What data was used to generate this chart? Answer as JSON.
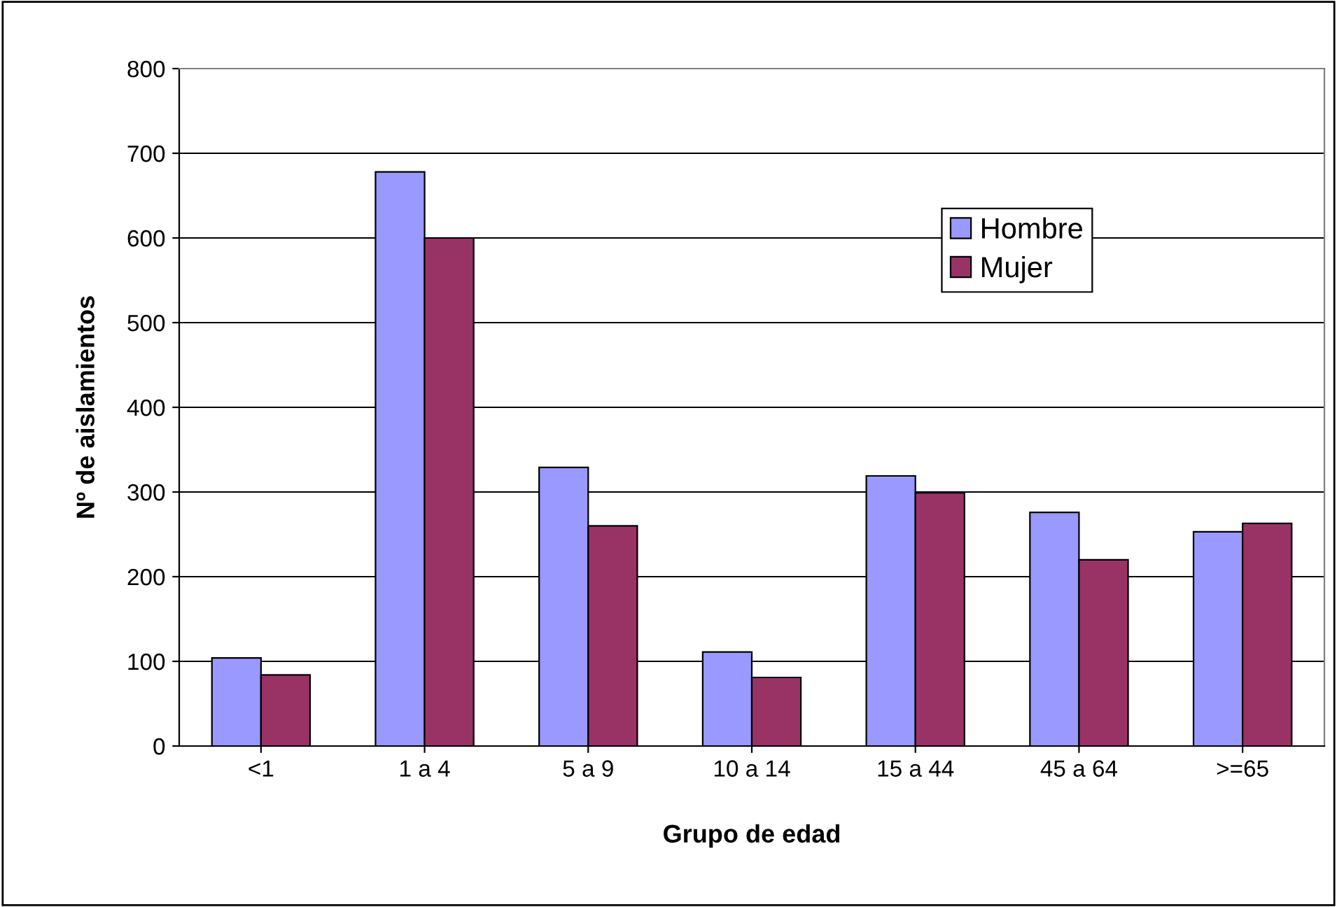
{
  "chart_data": {
    "type": "bar",
    "xlabel": "Grupo de edad",
    "ylabel": "Nº de aislamientos",
    "categories": [
      "<1",
      "1 a 4",
      "5 a 9",
      "10 a 14",
      "15 a 44",
      "45 a 64",
      ">=65"
    ],
    "series": [
      {
        "name": "Hombre",
        "color": "#9999ff",
        "values": [
          104,
          678,
          329,
          111,
          319,
          276,
          253
        ]
      },
      {
        "name": "Mujer",
        "color": "#993366",
        "values": [
          84,
          600,
          260,
          81,
          299,
          220,
          263
        ]
      }
    ],
    "ylim": [
      0,
      800
    ],
    "yticks": [
      0,
      100,
      200,
      300,
      400,
      500,
      600,
      700,
      800
    ],
    "grid": "y",
    "legend": "top right"
  }
}
